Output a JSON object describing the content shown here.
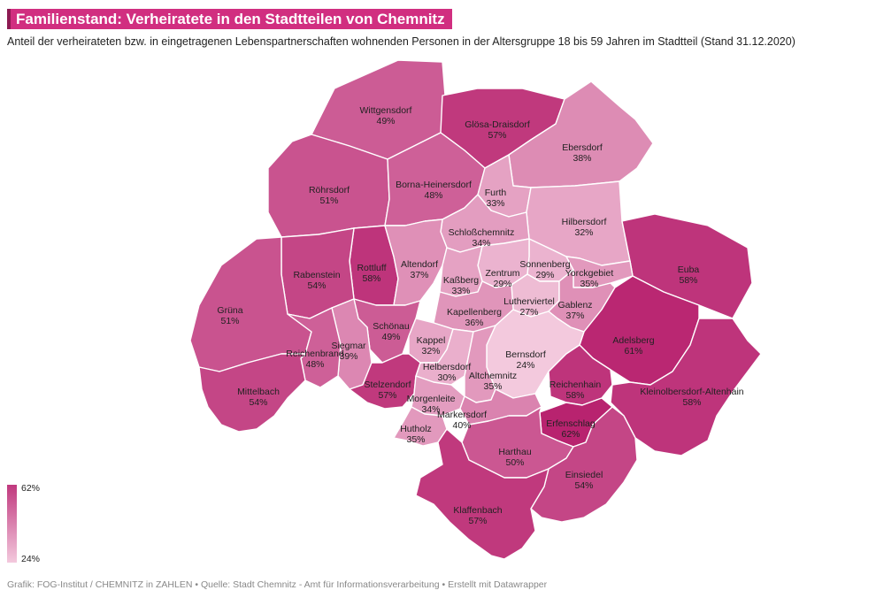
{
  "title": "Familienstand: Verheiratete in den Stadtteilen von Chemnitz",
  "subtitle": "Anteil der verheirateten bzw. in eingetragenen Lebenspartnerschaften wohnenden Personen in der Altersgruppe 18 bis 59 Jahren im Stadtteil (Stand 31.12.2020)",
  "legend": {
    "max_label": "62%",
    "min_label": "24%",
    "min_value": 24,
    "max_value": 62,
    "color_low": "#f3c9dd",
    "color_high": "#b8236f"
  },
  "districts": [
    {
      "id": "wittgensdorf",
      "name": "Wittgensdorf",
      "value": 49,
      "label": "49%"
    },
    {
      "id": "gloesa",
      "name": "Glösa-Draisdorf",
      "value": 57,
      "label": "57%"
    },
    {
      "id": "ebersdorf",
      "name": "Ebersdorf",
      "value": 38,
      "label": "38%"
    },
    {
      "id": "roehrsdorf",
      "name": "Röhrsdorf",
      "value": 51,
      "label": "51%"
    },
    {
      "id": "borna",
      "name": "Borna-Heinersdorf",
      "value": 48,
      "label": "48%"
    },
    {
      "id": "furth",
      "name": "Furth",
      "value": 33,
      "label": "33%"
    },
    {
      "id": "hilbersdorf",
      "name": "Hilbersdorf",
      "value": 32,
      "label": "32%"
    },
    {
      "id": "schloss",
      "name": "Schloßchemnitz",
      "value": 34,
      "label": "34%"
    },
    {
      "id": "euba",
      "name": "Euba",
      "value": 58,
      "label": "58%"
    },
    {
      "id": "rottluff",
      "name": "Rottluff",
      "value": 58,
      "label": "58%"
    },
    {
      "id": "altendorf",
      "name": "Altendorf",
      "value": 37,
      "label": "37%"
    },
    {
      "id": "rabenstein",
      "name": "Rabenstein",
      "value": 54,
      "label": "54%"
    },
    {
      "id": "sonnenberg",
      "name": "Sonnenberg",
      "value": 29,
      "label": "29%"
    },
    {
      "id": "zentrum",
      "name": "Zentrum",
      "value": 29,
      "label": "29%"
    },
    {
      "id": "yorck",
      "name": "Yorckgebiet",
      "value": 35,
      "label": "35%"
    },
    {
      "id": "kassberg",
      "name": "Kaßberg",
      "value": 33,
      "label": "33%"
    },
    {
      "id": "gruena",
      "name": "Grüna",
      "value": 51,
      "label": "51%"
    },
    {
      "id": "luther",
      "name": "Lutherviertel",
      "value": 27,
      "label": "27%"
    },
    {
      "id": "gablenz",
      "name": "Gablenz",
      "value": 37,
      "label": "37%"
    },
    {
      "id": "kapellenberg",
      "name": "Kapellenberg",
      "value": 36,
      "label": "36%"
    },
    {
      "id": "schoenau",
      "name": "Schönau",
      "value": 49,
      "label": "49%"
    },
    {
      "id": "adelsberg",
      "name": "Adelsberg",
      "value": 61,
      "label": "61%"
    },
    {
      "id": "siegmar",
      "name": "Siegmar",
      "value": 39,
      "label": "39%"
    },
    {
      "id": "kappel",
      "name": "Kappel",
      "value": 32,
      "label": "32%"
    },
    {
      "id": "bernsdorf",
      "name": "Bernsdorf",
      "value": 24,
      "label": "24%"
    },
    {
      "id": "reichenbrand",
      "name": "Reichenbrand",
      "value": 48,
      "label": "48%"
    },
    {
      "id": "helbersdorf",
      "name": "Helbersdorf",
      "value": 30,
      "label": "30%"
    },
    {
      "id": "reichenhain",
      "name": "Reichenhain",
      "value": 58,
      "label": "58%"
    },
    {
      "id": "altchemnitz",
      "name": "Altchemnitz",
      "value": 35,
      "label": "35%"
    },
    {
      "id": "kleinolbersdorf",
      "name": "Kleinolbersdorf-Altenhain",
      "value": 58,
      "label": "58%"
    },
    {
      "id": "mittelbach",
      "name": "Mittelbach",
      "value": 54,
      "label": "54%"
    },
    {
      "id": "stelzendorf",
      "name": "Stelzendorf",
      "value": 57,
      "label": "57%"
    },
    {
      "id": "morgenleite",
      "name": "Morgenleite",
      "value": 34,
      "label": "34%"
    },
    {
      "id": "markersdorf",
      "name": "Markersdorf",
      "value": 40,
      "label": "40%"
    },
    {
      "id": "erfenschlag",
      "name": "Erfenschlag",
      "value": 62,
      "label": "62%"
    },
    {
      "id": "hutholz",
      "name": "Hutholz",
      "value": 35,
      "label": "35%"
    },
    {
      "id": "harthau",
      "name": "Harthau",
      "value": 50,
      "label": "50%"
    },
    {
      "id": "einsiedel",
      "name": "Einsiedel",
      "value": 54,
      "label": "54%"
    },
    {
      "id": "klaffenbach",
      "name": "Klaffenbach",
      "value": 57,
      "label": "57%"
    }
  ],
  "footer": "Grafik: FOG-Institut / CHEMNITZ in ZAHLEN • Quelle: Stadt Chemnitz - Amt für Informationsverarbeitung • Erstellt mit Datawrapper"
}
